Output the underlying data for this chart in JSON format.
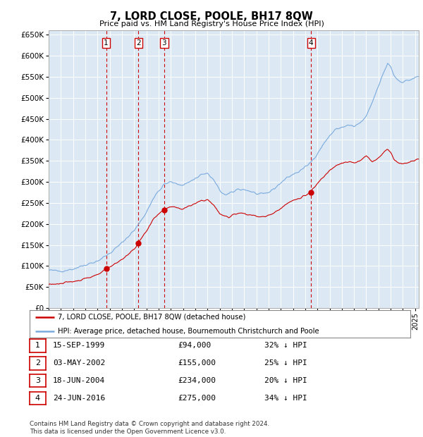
{
  "title": "7, LORD CLOSE, POOLE, BH17 8QW",
  "subtitle": "Price paid vs. HM Land Registry's House Price Index (HPI)",
  "ylim": [
    0,
    660000
  ],
  "yticks": [
    0,
    50000,
    100000,
    150000,
    200000,
    250000,
    300000,
    350000,
    400000,
    450000,
    500000,
    550000,
    600000,
    650000
  ],
  "xlim_start": 1995.0,
  "xlim_end": 2025.3,
  "plot_bg_color": "#dce9f5",
  "grid_color": "#ffffff",
  "hpi_color": "#7aaadd",
  "price_color": "#cc0000",
  "sales": [
    {
      "num": 1,
      "date_label": "15-SEP-1999",
      "price": 94000,
      "pct": "32%",
      "x_year": 1999.71,
      "y_val": 94000
    },
    {
      "num": 2,
      "date_label": "03-MAY-2002",
      "price": 155000,
      "pct": "25%",
      "x_year": 2002.34,
      "y_val": 155000
    },
    {
      "num": 3,
      "date_label": "18-JUN-2004",
      "price": 234000,
      "pct": "20%",
      "x_year": 2004.46,
      "y_val": 234000
    },
    {
      "num": 4,
      "date_label": "24-JUN-2016",
      "price": 275000,
      "pct": "34%",
      "x_year": 2016.48,
      "y_val": 275000
    }
  ],
  "legend_label_red": "7, LORD CLOSE, POOLE, BH17 8QW (detached house)",
  "legend_label_blue": "HPI: Average price, detached house, Bournemouth Christchurch and Poole",
  "footer": "Contains HM Land Registry data © Crown copyright and database right 2024.\nThis data is licensed under the Open Government Licence v3.0."
}
